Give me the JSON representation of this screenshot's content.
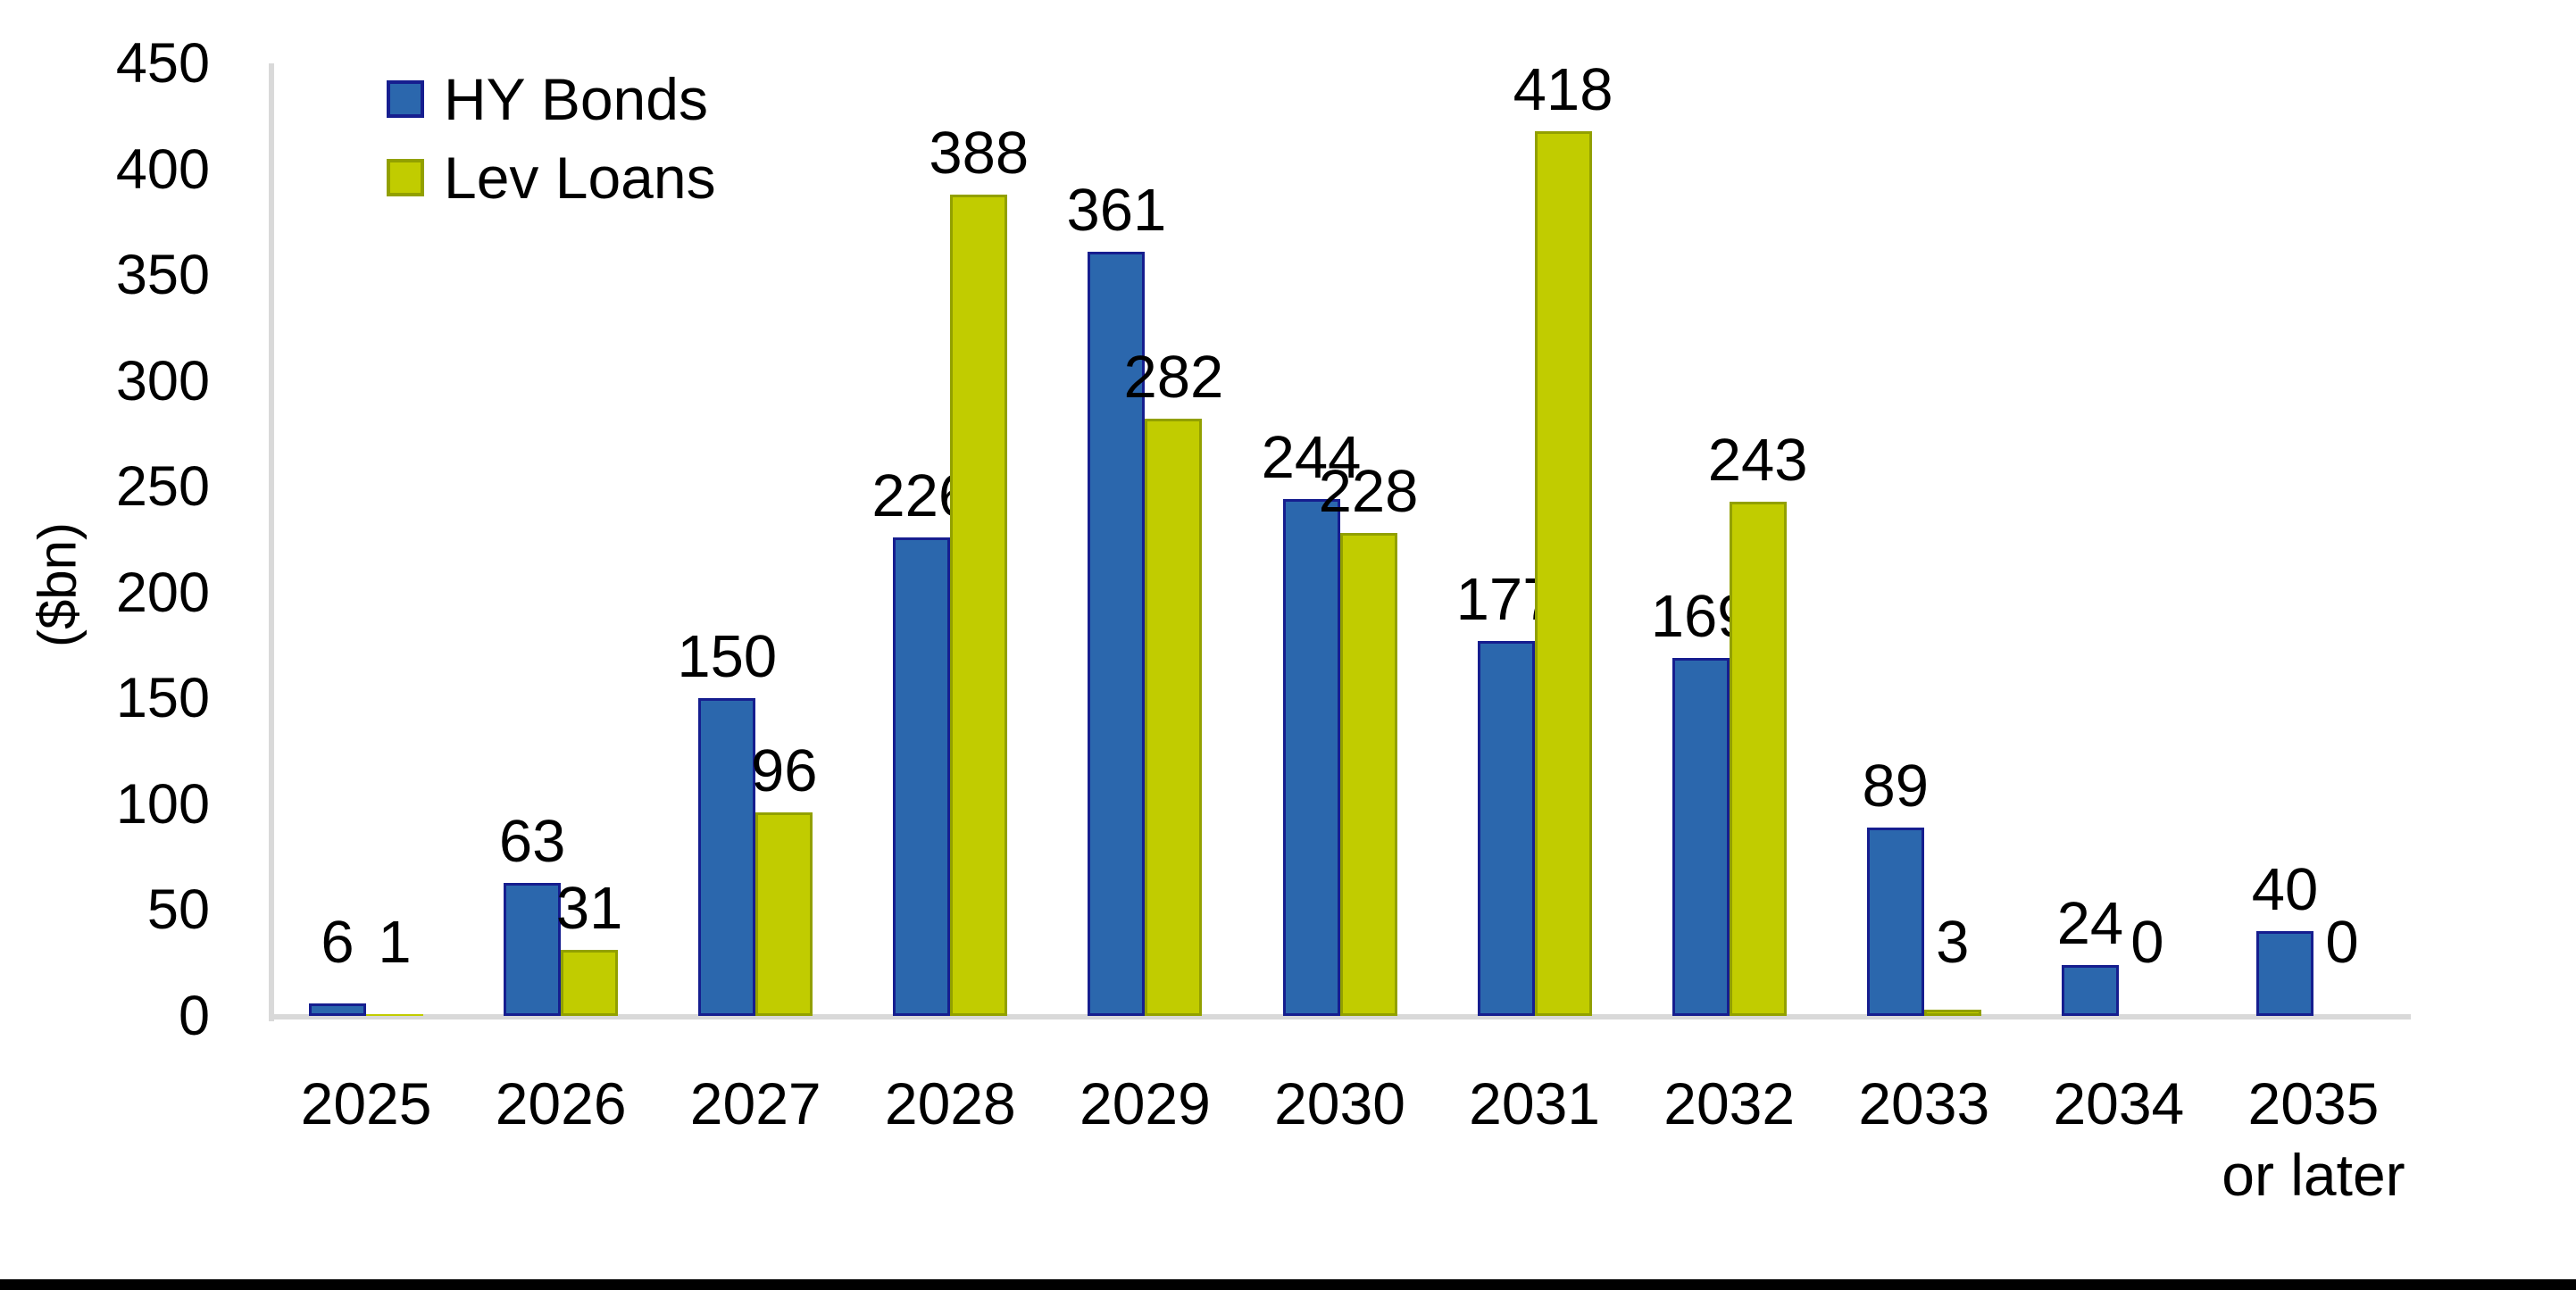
{
  "chart_data": {
    "type": "bar",
    "title": "",
    "ylabel": "($bn)",
    "xlabel": "",
    "ylim": [
      0,
      450
    ],
    "yticks": [
      0,
      50,
      100,
      150,
      200,
      250,
      300,
      350,
      400,
      450
    ],
    "grid": false,
    "legend_position": "top-left",
    "axis_color": "#D9D9D9",
    "text_color": "#000000",
    "categories": [
      [
        "2025"
      ],
      [
        "2026"
      ],
      [
        "2027"
      ],
      [
        "2028"
      ],
      [
        "2029"
      ],
      [
        "2030"
      ],
      [
        "2031"
      ],
      [
        "2032"
      ],
      [
        "2033"
      ],
      [
        "2034"
      ],
      [
        "2035",
        "or later"
      ]
    ],
    "series": [
      {
        "name": "HY Bonds",
        "color": "#2B67AD",
        "border_color": "#161E8F",
        "values": [
          6,
          63,
          150,
          226,
          361,
          244,
          177,
          169,
          89,
          24,
          40
        ]
      },
      {
        "name": "Lev Loans",
        "color": "#C1CC00",
        "border_color": "#92A000",
        "values": [
          1,
          31,
          96,
          388,
          282,
          228,
          418,
          243,
          3,
          0,
          0
        ]
      }
    ]
  }
}
